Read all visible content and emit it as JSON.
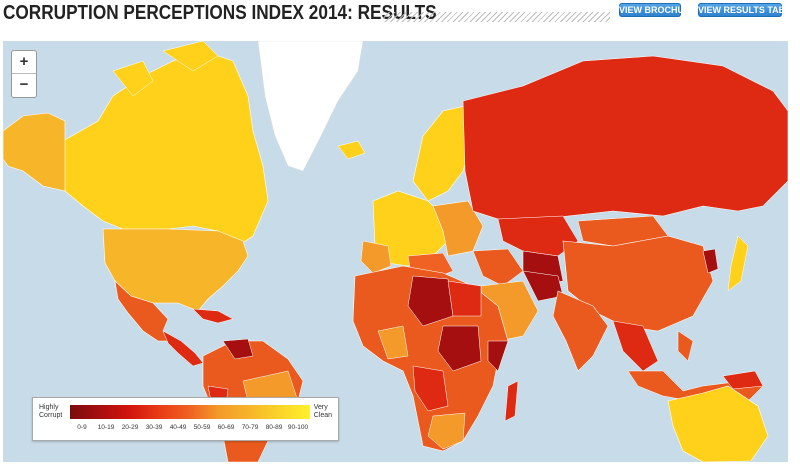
{
  "header": {
    "title": "CORRUPTION PERCEPTIONS INDEX 2014: RESULTS",
    "brochure_btn": "VIEW BROCHURE",
    "table_btn": "VIEW RESULTS TABLE"
  },
  "zoom": {
    "plus": "+",
    "minus": "−"
  },
  "legend": {
    "left_line1": "Highly",
    "left_line2": "Corrupt",
    "right_line1": "Very",
    "right_line2": "Clean",
    "ranges": [
      "0-9",
      "10-19",
      "20-29",
      "30-39",
      "40-49",
      "50-59",
      "60-69",
      "70-79",
      "80-89",
      "90-100"
    ]
  },
  "colors": {
    "ocean": "#c8dbe8",
    "very_clean": "#ffd11a",
    "clean": "#f7b52a",
    "mid": "#f39a2a",
    "lowmid": "#ea5a1e",
    "corrupt": "#de2a12",
    "highly_corrupt": "#a50f0f",
    "no_data": "#ffffff"
  }
}
